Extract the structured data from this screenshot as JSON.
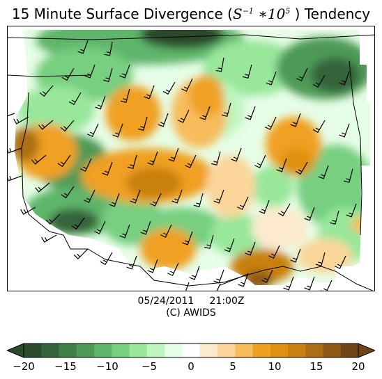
{
  "title": {
    "prefix": "15 Minute Surface Divergence (",
    "math_base": "S",
    "math_exp1": "−1",
    "math_mult": " ∗10",
    "math_exp2": "5",
    "suffix": " ) Tendency"
  },
  "footer": {
    "date": "05/24/2011",
    "time": "21:00Z",
    "copyright": "(C) AWIDS"
  },
  "colorbar": {
    "min": -20,
    "max": 20,
    "tick_labels": [
      "−20",
      "−15",
      "−10",
      "−5",
      "0",
      "5",
      "10",
      "15",
      "20"
    ],
    "colors": [
      "#2c4a2c",
      "#35643a",
      "#3f7e46",
      "#4e9a57",
      "#5fb56a",
      "#77cf80",
      "#98e79b",
      "#bff5c0",
      "#e6fde6",
      "#ffffff",
      "#fde9cc",
      "#fbd59a",
      "#f7bc5c",
      "#f0a020",
      "#e09010",
      "#c9800e",
      "#ad6f14",
      "#8e5a17",
      "#6e4513"
    ]
  },
  "map": {
    "background": "#ffffff",
    "wind_barb_color": "#000000",
    "boundary_color": "#000000"
  }
}
